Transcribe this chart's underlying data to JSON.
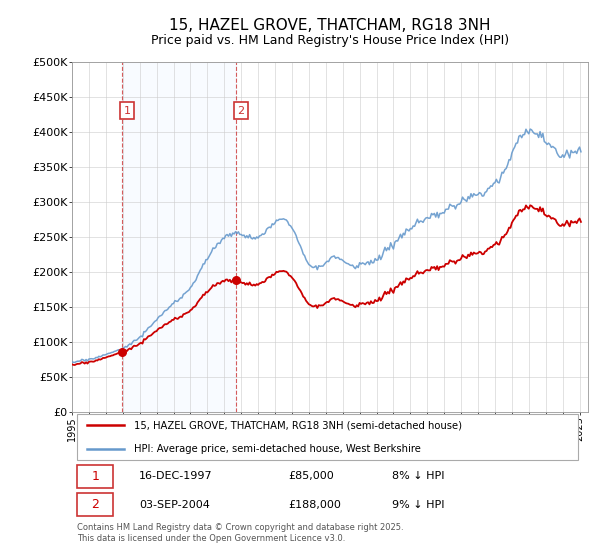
{
  "title": "15, HAZEL GROVE, THATCHAM, RG18 3NH",
  "subtitle": "Price paid vs. HM Land Registry's House Price Index (HPI)",
  "title_fontsize": 11,
  "legend_line1": "15, HAZEL GROVE, THATCHAM, RG18 3NH (semi-detached house)",
  "legend_line2": "HPI: Average price, semi-detached house, West Berkshire",
  "price_color": "#cc0000",
  "hpi_color": "#6699cc",
  "shade_color": "#ddeeff",
  "vline_color": "#cc3333",
  "annotation1_date": "16-DEC-1997",
  "annotation1_price": "£85,000",
  "annotation1_pct": "8% ↓ HPI",
  "annotation2_date": "03-SEP-2004",
  "annotation2_price": "£188,000",
  "annotation2_pct": "9% ↓ HPI",
  "footer": "Contains HM Land Registry data © Crown copyright and database right 2025.\nThis data is licensed under the Open Government Licence v3.0.",
  "ylim": [
    0,
    500000
  ],
  "yticks": [
    0,
    50000,
    100000,
    150000,
    200000,
    250000,
    300000,
    350000,
    400000,
    450000,
    500000
  ],
  "t1": 1997.958,
  "p1": 85000,
  "t2": 2004.667,
  "p2": 188000,
  "xlim_left": 1995.0,
  "xlim_right": 2025.5
}
